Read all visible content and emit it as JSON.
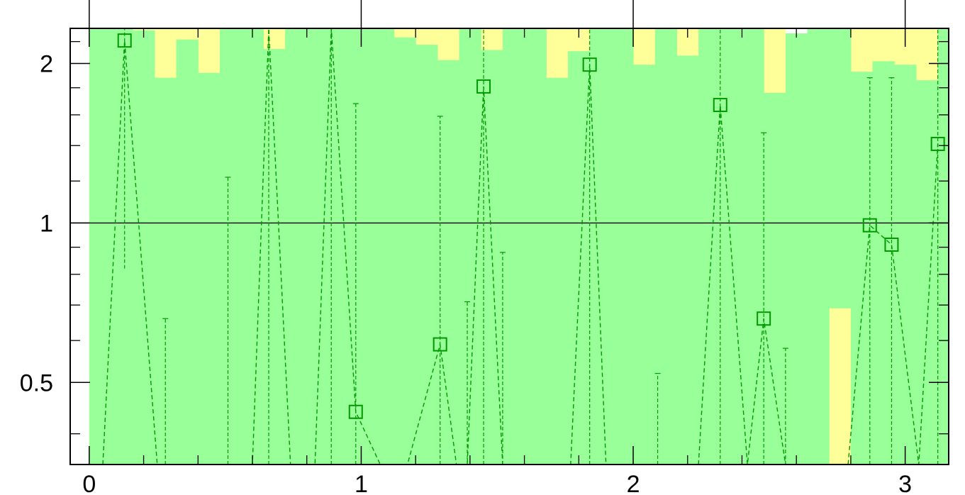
{
  "chart_data": {
    "type": "bar",
    "title": "",
    "xlabel": "",
    "ylabel": "",
    "xlim": [
      -0.07,
      3.16
    ],
    "ylim": [
      0.35,
      2.33
    ],
    "x_ticks": [
      0,
      1,
      2,
      3
    ],
    "x_tick_labels": [
      "0",
      "1",
      "2",
      "3"
    ],
    "y_ticks": [
      0.5,
      1,
      2
    ],
    "y_tick_labels": [
      "0.5",
      "1",
      "2"
    ],
    "reference_line_y": 1,
    "colors": {
      "band_outer": "#ffff99",
      "band_inner": "#99ff99",
      "series": "#009900",
      "axis": "#000000",
      "background": "#ffffff"
    },
    "bands": {
      "edges": [
        0,
        0.08,
        0.16,
        0.24,
        0.32,
        0.4,
        0.48,
        0.56,
        0.64,
        0.72,
        0.8,
        0.88,
        0.96,
        1.04,
        1.12,
        1.2,
        1.28,
        1.36,
        1.44,
        1.52,
        1.6,
        1.68,
        1.76,
        1.84,
        1.92,
        2.0,
        2.08,
        2.16,
        2.24,
        2.32,
        2.4,
        2.48,
        2.56,
        2.64,
        2.72,
        2.8,
        2.88,
        2.96,
        3.04,
        3.12,
        3.16
      ],
      "outer_low": [
        0.35,
        0.35,
        0.35,
        0.35,
        0.35,
        0.35,
        0.35,
        0.35,
        0.35,
        0.35,
        0.35,
        0.35,
        0.35,
        0.35,
        0.35,
        0.35,
        0.35,
        0.35,
        0.35,
        0.35,
        0.35,
        0.35,
        0.35,
        0.35,
        0.35,
        0.35,
        0.35,
        0.35,
        0.35,
        0.35,
        0.35,
        0.35,
        0.35,
        0.35,
        0.35,
        0.35,
        0.35,
        0.35,
        0.35,
        0.35
      ],
      "outer_high": [
        2.33,
        2.33,
        2.33,
        2.33,
        2.33,
        2.33,
        2.33,
        2.33,
        2.33,
        2.33,
        2.33,
        2.33,
        2.33,
        2.33,
        2.33,
        2.33,
        2.33,
        2.33,
        2.33,
        2.33,
        2.33,
        2.33,
        2.33,
        2.33,
        2.33,
        2.33,
        2.33,
        2.33,
        2.33,
        2.33,
        2.33,
        2.33,
        2.25,
        2.33,
        1.91,
        2.33,
        2.33,
        2.33,
        2.33,
        2.33
      ],
      "inner_low": [
        0.35,
        0.35,
        0.35,
        0.35,
        0.35,
        0.35,
        0.35,
        0.35,
        0.35,
        0.35,
        0.35,
        0.35,
        0.35,
        0.35,
        0.35,
        0.35,
        0.35,
        0.35,
        0.35,
        0.35,
        0.35,
        0.35,
        0.35,
        0.35,
        0.35,
        0.35,
        0.35,
        0.35,
        0.35,
        0.35,
        0.35,
        0.35,
        0.35,
        0.35,
        0.69,
        0.35,
        0.35,
        0.35,
        0.35,
        0.35
      ],
      "inner_high": [
        2.33,
        2.33,
        2.31,
        1.88,
        2.22,
        1.92,
        2.33,
        2.33,
        2.13,
        2.33,
        2.33,
        2.33,
        2.33,
        2.33,
        2.24,
        2.17,
        2.03,
        2.33,
        2.12,
        2.33,
        2.33,
        1.88,
        2.11,
        2.33,
        2.33,
        1.99,
        2.33,
        2.07,
        2.33,
        2.33,
        2.33,
        1.76,
        2.28,
        2.33,
        2.33,
        1.93,
        2.02,
        1.99,
        1.86,
        2.33
      ]
    },
    "series": [
      {
        "name": "",
        "x": [
          0.05,
          0.13,
          0.25,
          0.28,
          0.43,
          0.51,
          0.6,
          0.66,
          0.74,
          0.83,
          0.89,
          0.98,
          1.07,
          1.17,
          1.29,
          1.35,
          1.39,
          1.45,
          1.52,
          1.61,
          1.77,
          1.84,
          1.9,
          2.09,
          2.24,
          2.32,
          2.42,
          2.48,
          2.56,
          2.79,
          2.87,
          2.95,
          3.05,
          3.12
        ],
        "y": [
          0.35,
          2.21,
          0.35,
          0.35,
          0.35,
          0.35,
          0.35,
          2.33,
          0.35,
          0.35,
          2.33,
          0.44,
          0.35,
          0.35,
          0.59,
          0.35,
          0.35,
          1.81,
          0.35,
          0.35,
          0.35,
          1.99,
          0.35,
          0.35,
          0.35,
          1.67,
          0.35,
          0.66,
          0.35,
          0.35,
          0.99,
          0.91,
          0.35,
          1.41
        ],
        "err_low": [
          0.35,
          0.82,
          0.35,
          0.35,
          0.35,
          0.35,
          0.35,
          0.35,
          0.35,
          0.35,
          0.35,
          0.35,
          0.35,
          0.35,
          0.35,
          0.35,
          0.35,
          0.35,
          0.35,
          0.35,
          0.35,
          0.35,
          0.35,
          0.35,
          0.35,
          0.35,
          0.35,
          0.35,
          0.35,
          0.35,
          0.35,
          0.35,
          0.35,
          0.35
        ],
        "err_high": [
          0.35,
          2.33,
          0.35,
          0.66,
          0.35,
          1.22,
          0.35,
          2.33,
          0.35,
          0.35,
          2.33,
          1.68,
          0.35,
          0.35,
          1.59,
          0.35,
          0.71,
          2.33,
          0.88,
          0.35,
          0.35,
          2.33,
          0.35,
          0.52,
          0.35,
          2.33,
          0.35,
          1.48,
          0.58,
          0.35,
          1.88,
          1.88,
          0.35,
          2.33
        ],
        "marker": "square"
      }
    ]
  }
}
